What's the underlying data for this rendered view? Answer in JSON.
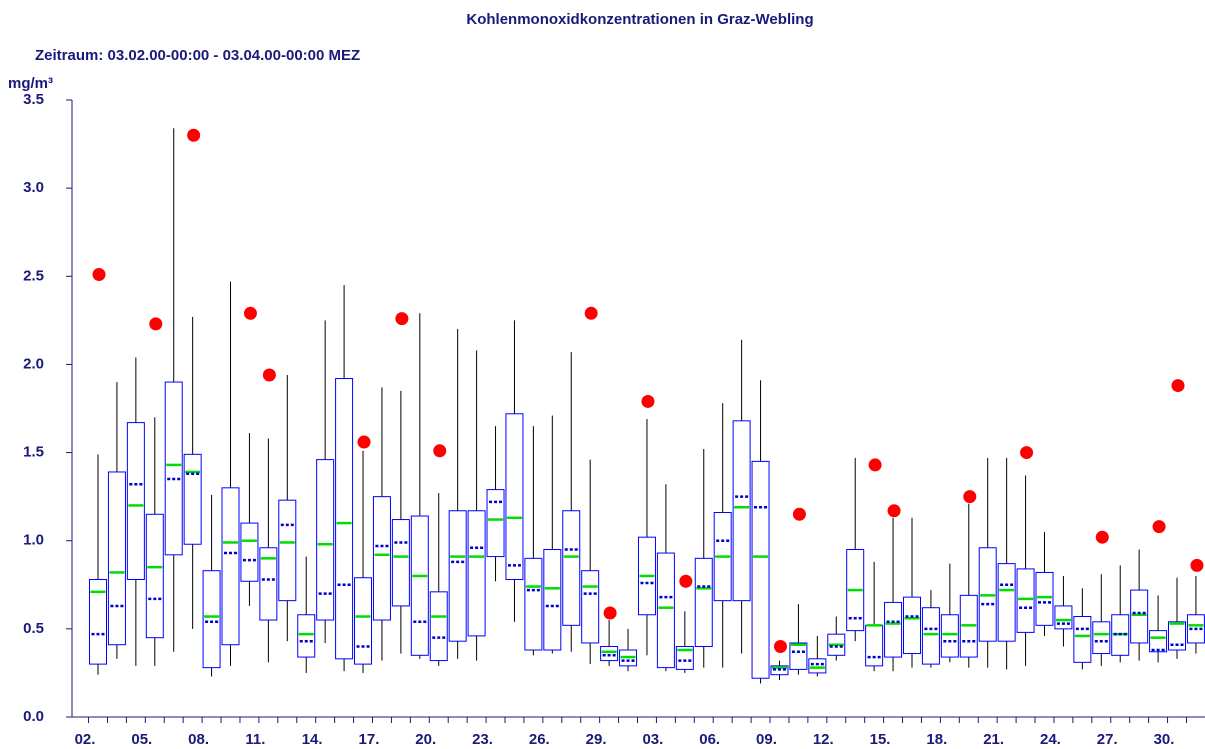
{
  "chart_data": {
    "type": "box",
    "title": "Kohlenmonoxidkonzentrationen in Graz-Webling",
    "subtitle": "Zeitraum: 03.02.00-00:00 - 03.04.00-00:00 MEZ",
    "y_label": "mg/m³",
    "categories": [
      "02.",
      null,
      null,
      "05.",
      null,
      null,
      "08.",
      null,
      null,
      "11.",
      null,
      null,
      "14.",
      null,
      null,
      "17.",
      null,
      null,
      "20.",
      null,
      null,
      "23.",
      null,
      null,
      "26.",
      null,
      null,
      "29.",
      null,
      null,
      "03.",
      null,
      null,
      "06.",
      null,
      null,
      "09.",
      null,
      null,
      "12.",
      null,
      null,
      "15.",
      null,
      null,
      "18.",
      null,
      null,
      "21.",
      null,
      null,
      "24.",
      null,
      null,
      "27.",
      null,
      null,
      "30.",
      null
    ],
    "whisker_low": [
      0.24,
      0.33,
      0.29,
      0.29,
      0.37,
      0.5,
      0.23,
      0.29,
      0.63,
      0.31,
      0.43,
      0.25,
      0.42,
      0.26,
      0.25,
      0.32,
      0.36,
      0.33,
      0.29,
      0.33,
      0.32,
      0.77,
      0.54,
      0.35,
      0.36,
      0.37,
      0.3,
      0.29,
      0.26,
      0.35,
      0.26,
      0.25,
      0.28,
      0.28,
      0.36,
      0.19,
      0.21,
      0.24,
      0.23,
      0.32,
      0.43,
      0.26,
      0.26,
      0.28,
      0.28,
      0.31,
      0.28,
      0.28,
      0.27,
      0.29,
      0.46,
      0.4,
      0.27,
      0.29,
      0.31,
      0.32,
      0.31,
      0.33,
      0.36
    ],
    "q1": [
      0.3,
      0.41,
      0.78,
      0.45,
      0.92,
      0.98,
      0.28,
      0.41,
      0.77,
      0.55,
      0.66,
      0.34,
      0.55,
      0.33,
      0.3,
      0.55,
      0.63,
      0.35,
      0.32,
      0.43,
      0.46,
      0.91,
      0.78,
      0.38,
      0.38,
      0.52,
      0.42,
      0.32,
      0.29,
      0.58,
      0.28,
      0.27,
      0.4,
      0.66,
      0.66,
      0.22,
      0.24,
      0.27,
      0.25,
      0.35,
      0.49,
      0.29,
      0.34,
      0.36,
      0.3,
      0.34,
      0.34,
      0.43,
      0.43,
      0.48,
      0.52,
      0.5,
      0.31,
      0.36,
      0.35,
      0.42,
      0.37,
      0.38,
      0.42
    ],
    "median": [
      0.71,
      0.82,
      1.2,
      0.85,
      1.43,
      1.39,
      0.57,
      0.99,
      1.0,
      0.9,
      0.99,
      0.47,
      0.98,
      1.1,
      0.57,
      0.92,
      0.91,
      0.8,
      0.57,
      0.91,
      0.91,
      1.12,
      1.13,
      0.74,
      0.73,
      0.91,
      0.74,
      0.37,
      0.34,
      0.8,
      0.62,
      0.38,
      0.73,
      0.91,
      1.19,
      0.91,
      0.28,
      0.41,
      0.28,
      0.41,
      0.72,
      0.52,
      0.53,
      0.56,
      0.47,
      0.47,
      0.52,
      0.69,
      0.72,
      0.67,
      0.68,
      0.55,
      0.46,
      0.47,
      0.47,
      0.58,
      0.45,
      0.53,
      0.52
    ],
    "mean": [
      0.47,
      0.63,
      1.32,
      0.67,
      1.35,
      1.38,
      0.54,
      0.93,
      0.89,
      0.78,
      1.09,
      0.43,
      0.7,
      0.75,
      0.4,
      0.97,
      0.99,
      0.54,
      0.45,
      0.88,
      0.96,
      1.22,
      0.86,
      0.72,
      0.63,
      0.95,
      0.7,
      0.35,
      0.32,
      0.76,
      0.68,
      0.32,
      0.74,
      1.0,
      1.25,
      1.19,
      0.27,
      0.37,
      0.3,
      0.4,
      0.56,
      0.34,
      0.54,
      0.57,
      0.5,
      0.43,
      0.43,
      0.64,
      0.75,
      0.62,
      0.65,
      0.53,
      0.5,
      0.43,
      0.47,
      0.59,
      0.38,
      0.41,
      0.5
    ],
    "q3": [
      0.78,
      1.39,
      1.67,
      1.15,
      1.9,
      1.49,
      0.83,
      1.3,
      1.1,
      0.96,
      1.23,
      0.58,
      1.46,
      1.92,
      0.79,
      1.25,
      1.12,
      1.14,
      0.71,
      1.17,
      1.17,
      1.29,
      1.72,
      0.9,
      0.95,
      1.17,
      0.83,
      0.4,
      0.38,
      1.02,
      0.93,
      0.4,
      0.9,
      1.16,
      1.68,
      1.45,
      0.29,
      0.42,
      0.33,
      0.47,
      0.95,
      0.52,
      0.65,
      0.68,
      0.62,
      0.58,
      0.69,
      0.96,
      0.87,
      0.84,
      0.82,
      0.63,
      0.57,
      0.54,
      0.58,
      0.72,
      0.49,
      0.54,
      0.58
    ],
    "whisker_high": [
      1.49,
      1.9,
      2.04,
      1.7,
      3.34,
      2.27,
      1.26,
      2.47,
      1.61,
      1.58,
      1.94,
      0.91,
      2.25,
      2.45,
      1.51,
      1.87,
      1.85,
      2.29,
      1.27,
      2.2,
      2.08,
      1.65,
      2.25,
      1.65,
      1.71,
      2.07,
      1.46,
      0.55,
      0.5,
      1.69,
      1.32,
      0.6,
      1.52,
      1.78,
      2.14,
      1.91,
      0.32,
      0.64,
      0.46,
      0.57,
      1.47,
      0.88,
      1.13,
      1.13,
      0.72,
      0.87,
      1.21,
      1.47,
      1.47,
      1.37,
      1.05,
      0.8,
      0.73,
      0.81,
      0.86,
      0.95,
      0.69,
      0.79,
      0.8
    ],
    "maximum": [
      2.51,
      null,
      null,
      2.23,
      null,
      3.3,
      null,
      null,
      2.29,
      1.94,
      null,
      null,
      null,
      null,
      1.56,
      null,
      2.26,
      null,
      1.51,
      null,
      null,
      null,
      null,
      null,
      null,
      null,
      2.29,
      0.59,
      null,
      1.79,
      null,
      0.77,
      null,
      null,
      null,
      null,
      0.4,
      1.15,
      null,
      null,
      null,
      1.43,
      1.17,
      null,
      null,
      null,
      1.25,
      null,
      null,
      1.5,
      null,
      null,
      null,
      1.02,
      null,
      null,
      1.08,
      1.88,
      0.86
    ],
    "box_color": "#0000ff",
    "median_color": "#00dd00",
    "mean_color": "#0000cc",
    "whisker_color": "#000000",
    "maximum_color": "#ff0000",
    "ylim": [
      0,
      3.5
    ],
    "yticks": [
      {
        "value": 0,
        "label": "0.0"
      },
      {
        "value": 0.5,
        "label": "0.5"
      },
      {
        "value": 1,
        "label": "1.0"
      },
      {
        "value": 1.5,
        "label": "1.5"
      },
      {
        "value": 2,
        "label": "2.0"
      },
      {
        "value": 2.5,
        "label": "2.5"
      },
      {
        "value": 3,
        "label": "3.0"
      },
      {
        "value": 3.5,
        "label": "3.5"
      }
    ]
  }
}
